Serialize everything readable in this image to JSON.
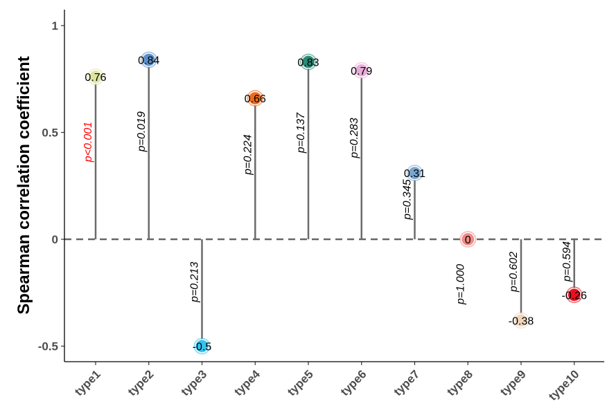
{
  "chart_data": {
    "type": "lollipop",
    "ylabel": "Spearman correlation coefficient",
    "ylim": [
      -0.58,
      1.07
    ],
    "yticks": [
      -0.5,
      0,
      0.5,
      1
    ],
    "ytick_labels": [
      "-0.5",
      "0",
      "0.5",
      "1"
    ],
    "reference_line": 0,
    "grid": false,
    "categories": [
      "type1",
      "type2",
      "type3",
      "type4",
      "type5",
      "type6",
      "type7",
      "type8",
      "type9",
      "type10"
    ],
    "values": [
      0.76,
      0.84,
      -0.5,
      0.66,
      0.83,
      0.79,
      0.31,
      0,
      -0.38,
      -0.26
    ],
    "value_labels": [
      "0.76",
      "0.84",
      "-0.5",
      "0.66",
      "0.83",
      "0.79",
      "0.31",
      "0",
      "-0.38",
      "-0.26"
    ],
    "p_labels": [
      "p<0.001",
      "p=0.019",
      "p=0.213",
      "p=0.224",
      "p=0.137",
      "p=0.283",
      "p=0.345",
      "p=1.000",
      "p=0.602",
      "p=0.594"
    ],
    "p_colors": [
      "#ff0000",
      "#000000",
      "#000000",
      "#000000",
      "#000000",
      "#000000",
      "#000000",
      "#000000",
      "#000000",
      "#000000"
    ],
    "point_colors": [
      "#dde3a4",
      "#5b8fc9",
      "#33c4ee",
      "#ef6a1a",
      "#2a8b76",
      "#e7acd8",
      "#7aa6cf",
      "#ee8a86",
      "#efd6bb",
      "#e8101f"
    ],
    "colors": {
      "stem": "#6b6b6b",
      "reference": "#666666",
      "axis": "#000000"
    }
  }
}
